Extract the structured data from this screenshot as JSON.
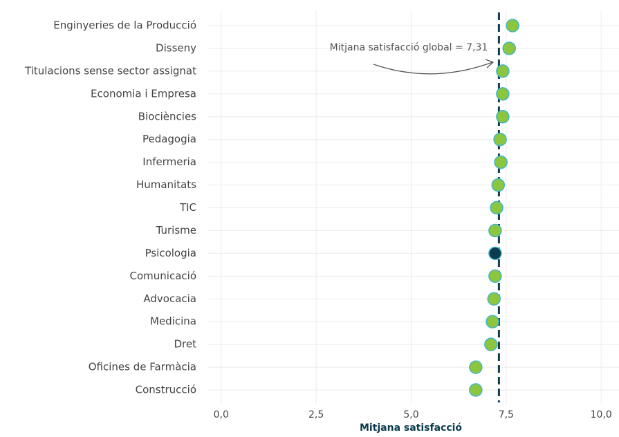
{
  "chart_data": {
    "type": "dot",
    "categories": [
      "Enginyeries de la Producció",
      "Disseny",
      "Titulacions sense sector assignat",
      "Economia i Empresa",
      "Biociències",
      "Pedagogia",
      "Infermeria",
      "Humanitats",
      "TIC",
      "Turisme",
      "Psicologia",
      "Comunicació",
      "Advocacia",
      "Medicina",
      "Dret",
      "Oficines de Farmàcia",
      "Construcció"
    ],
    "values": [
      7.67,
      7.58,
      7.41,
      7.41,
      7.41,
      7.34,
      7.36,
      7.29,
      7.25,
      7.21,
      7.21,
      7.21,
      7.18,
      7.14,
      7.1,
      6.7,
      6.7
    ],
    "colors": [
      "#8cc63f",
      "#8cc63f",
      "#8cc63f",
      "#8cc63f",
      "#8cc63f",
      "#8cc63f",
      "#8cc63f",
      "#8cc63f",
      "#8cc63f",
      "#8cc63f",
      "#0b3b4c",
      "#8cc63f",
      "#8cc63f",
      "#8cc63f",
      "#8cc63f",
      "#8cc63f",
      "#8cc63f"
    ],
    "mean_line": 7.31,
    "annotation": "Mitjana satisfacció global = 7,31",
    "x_label": "Mitjana satisfacció",
    "xlim": [
      -0.36,
      10.47
    ],
    "xticks": [
      {
        "value": 0,
        "label": "0,0"
      },
      {
        "value": 2.5,
        "label": "2,5"
      },
      {
        "value": 5,
        "label": "5,0"
      },
      {
        "value": 7.5,
        "label": "7,5"
      },
      {
        "value": 10,
        "label": "10,0"
      }
    ],
    "grid": true
  }
}
